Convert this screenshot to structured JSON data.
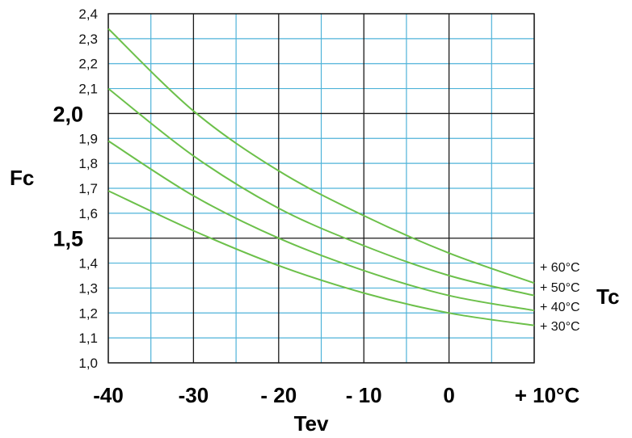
{
  "chart_data": {
    "type": "line",
    "title": "",
    "xlabel": "Tev",
    "ylabel": "Fc",
    "legend_title": "Tc",
    "xlim": [
      -40,
      10
    ],
    "ylim": [
      1.0,
      2.4
    ],
    "grid": true,
    "colors": {
      "major_grid": "#1a1a1a",
      "minor_grid": "#4fb3d9",
      "series_line": "#6cc04a"
    },
    "x_ticks": [
      {
        "value": -40,
        "label": "-40"
      },
      {
        "value": -30,
        "label": "-30"
      },
      {
        "value": -20,
        "label": "- 20"
      },
      {
        "value": -10,
        "label": "- 10"
      },
      {
        "value": 0,
        "label": "0"
      },
      {
        "value": 10,
        "label": "+ 10°C"
      }
    ],
    "y_ticks": [
      {
        "value": 1.0,
        "label": "1,0"
      },
      {
        "value": 1.1,
        "label": "1,1"
      },
      {
        "value": 1.2,
        "label": "1,2"
      },
      {
        "value": 1.3,
        "label": "1,3"
      },
      {
        "value": 1.4,
        "label": "1,4"
      },
      {
        "value": 1.5,
        "label": "1,5"
      },
      {
        "value": 1.6,
        "label": "1,6"
      },
      {
        "value": 1.7,
        "label": "1,7"
      },
      {
        "value": 1.8,
        "label": "1,8"
      },
      {
        "value": 1.9,
        "label": "1,9"
      },
      {
        "value": 2.0,
        "label": "2,0"
      },
      {
        "value": 2.1,
        "label": "2,1"
      },
      {
        "value": 2.2,
        "label": "2,2"
      },
      {
        "value": 2.3,
        "label": "2,3"
      },
      {
        "value": 2.4,
        "label": "2,4"
      }
    ],
    "x": [
      -40,
      -30,
      -20,
      -10,
      0,
      10
    ],
    "series": [
      {
        "name": "+ 60°C",
        "values": [
          2.34,
          2.01,
          1.77,
          1.59,
          1.44,
          1.32
        ]
      },
      {
        "name": "+ 50°C",
        "values": [
          2.1,
          1.83,
          1.62,
          1.47,
          1.35,
          1.27
        ]
      },
      {
        "name": "+ 40°C",
        "values": [
          1.89,
          1.67,
          1.5,
          1.37,
          1.27,
          1.21
        ]
      },
      {
        "name": "+ 30°C",
        "values": [
          1.69,
          1.53,
          1.39,
          1.28,
          1.2,
          1.15
        ]
      }
    ]
  }
}
